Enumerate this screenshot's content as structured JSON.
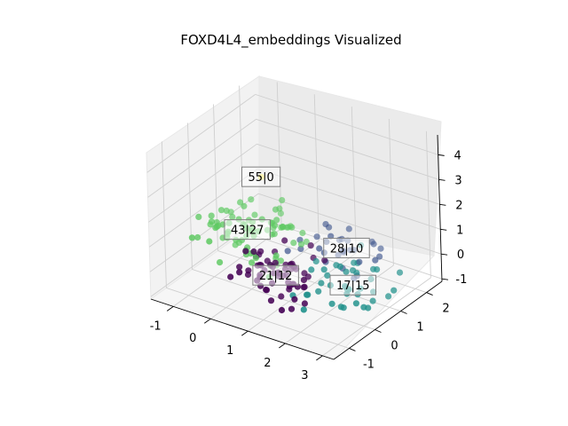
{
  "chart_data": {
    "type": "scatter3d",
    "title": "FOXD4L4_embeddings Visualized",
    "xlabel": "",
    "ylabel": "",
    "zlabel": "",
    "xlim": [
      -1.6,
      3.3
    ],
    "ylim": [
      -1.6,
      2.6
    ],
    "zlim": [
      -1.1,
      4.8
    ],
    "xticks": [
      "-1",
      "0",
      "1",
      "2",
      "3"
    ],
    "yticks": [
      "-1",
      "0",
      "1",
      "2"
    ],
    "zticks": [
      "-1",
      "0",
      "1",
      "2",
      "3",
      "4"
    ],
    "grid": true,
    "colors": {
      "purple": "#440154",
      "navy": "#3b528b",
      "teal": "#21918c",
      "green": "#5ec962",
      "yellow": "#fde725"
    },
    "clusters": [
      {
        "label": "21|12",
        "color": "#440154",
        "center": [
          0.8,
          -0.2,
          0.0
        ],
        "spread": [
          0.5,
          0.45,
          0.35
        ],
        "count": 60
      },
      {
        "label": "17|15",
        "color": "#21918c",
        "center": [
          2.6,
          0.2,
          0.2
        ],
        "spread": [
          0.5,
          0.45,
          0.35
        ],
        "count": 40
      },
      {
        "label": "28|10",
        "color": "#3b528b",
        "center": [
          1.6,
          1.4,
          0.3
        ],
        "spread": [
          0.55,
          0.45,
          0.35
        ],
        "count": 30
      },
      {
        "label": "43|27",
        "color": "#5ec962",
        "center": [
          -0.5,
          0.6,
          0.6
        ],
        "spread": [
          0.55,
          0.55,
          0.4
        ],
        "count": 80
      },
      {
        "label": "55|0",
        "color": "#fde725",
        "center": [
          -0.3,
          0.9,
          2.6
        ],
        "spread": [
          0.02,
          0.02,
          0.02
        ],
        "count": 1
      }
    ]
  }
}
